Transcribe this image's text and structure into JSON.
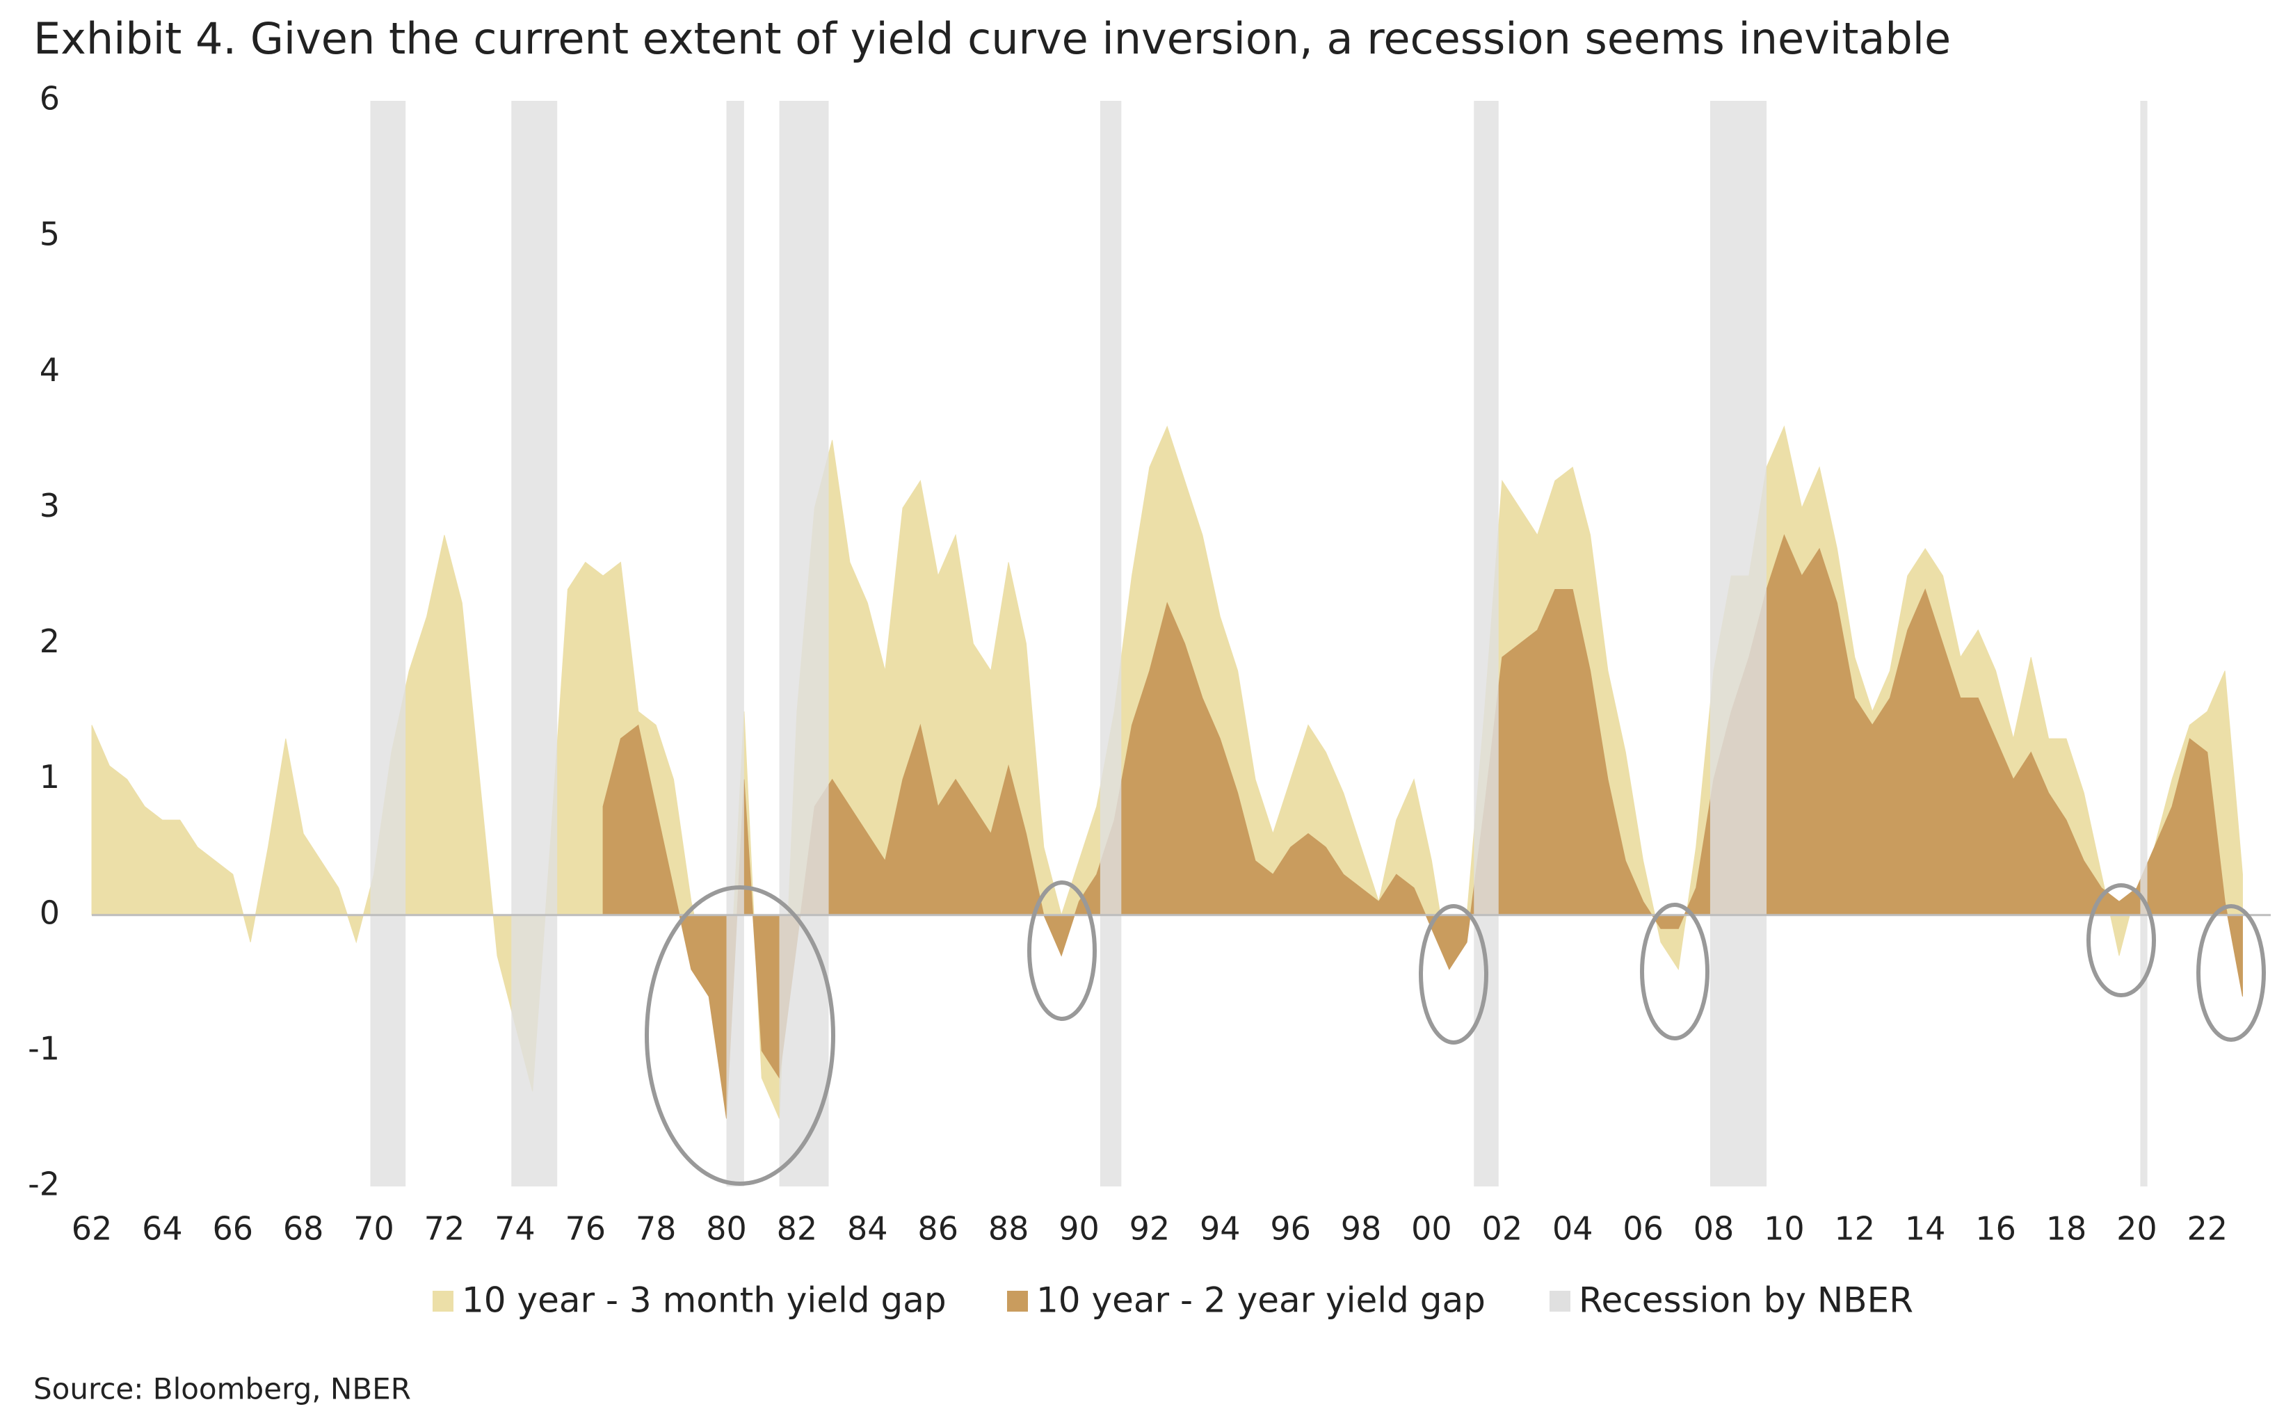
{
  "chart_data": {
    "type": "area",
    "title": "Exhibit 4. Given the current extent of yield curve inversion, a recession seems inevitable",
    "source": "Source: Bloomberg, NBER",
    "x": [
      1962,
      1962.5,
      1963,
      1963.5,
      1964,
      1964.5,
      1965,
      1965.5,
      1966,
      1966.5,
      1967,
      1967.5,
      1968,
      1968.5,
      1969,
      1969.5,
      1970,
      1970.5,
      1971,
      1971.5,
      1972,
      1972.5,
      1973,
      1973.5,
      1974,
      1974.5,
      1975,
      1975.5,
      1976,
      1976.5,
      1977,
      1977.5,
      1978,
      1978.5,
      1979,
      1979.5,
      1980,
      1980.5,
      1981,
      1981.5,
      1982,
      1982.5,
      1983,
      1983.5,
      1984,
      1984.5,
      1985,
      1985.5,
      1986,
      1986.5,
      1987,
      1987.5,
      1988,
      1988.5,
      1989,
      1989.5,
      1990,
      1990.5,
      1991,
      1991.5,
      1992,
      1992.5,
      1993,
      1993.5,
      1994,
      1994.5,
      1995,
      1995.5,
      1996,
      1996.5,
      1997,
      1997.5,
      1998,
      1998.5,
      1999,
      1999.5,
      2000,
      2000.5,
      2001,
      2001.5,
      2002,
      2002.5,
      2003,
      2003.5,
      2004,
      2004.5,
      2005,
      2005.5,
      2006,
      2006.5,
      2007,
      2007.5,
      2008,
      2008.5,
      2009,
      2009.5,
      2010,
      2010.5,
      2011,
      2011.5,
      2012,
      2012.5,
      2013,
      2013.5,
      2014,
      2014.5,
      2015,
      2015.5,
      2016,
      2016.5,
      2017,
      2017.5,
      2018,
      2018.5,
      2019,
      2019.5,
      2020,
      2020.5,
      2021,
      2021.5,
      2022,
      2022.5,
      2023
    ],
    "series": [
      {
        "name": "10 year - 3 month yield gap",
        "color": "#ecdfa8",
        "values": [
          1.4,
          1.1,
          1.0,
          0.8,
          0.7,
          0.7,
          0.5,
          0.4,
          0.3,
          -0.2,
          0.5,
          1.3,
          0.6,
          0.4,
          0.2,
          -0.2,
          0.3,
          1.2,
          1.8,
          2.2,
          2.8,
          2.3,
          1.0,
          -0.3,
          -0.8,
          -1.3,
          0.5,
          2.4,
          2.6,
          2.5,
          2.6,
          1.5,
          1.4,
          1.0,
          0.1,
          -0.5,
          -1.0,
          1.5,
          -1.2,
          -1.5,
          1.5,
          3.0,
          3.5,
          2.6,
          2.3,
          1.8,
          3.0,
          3.2,
          2.5,
          2.8,
          2.0,
          1.8,
          2.6,
          2.0,
          0.5,
          0.0,
          0.4,
          0.8,
          1.5,
          2.5,
          3.3,
          3.6,
          3.2,
          2.8,
          2.2,
          1.8,
          1.0,
          0.6,
          1.0,
          1.4,
          1.2,
          0.9,
          0.5,
          0.1,
          0.7,
          1.0,
          0.4,
          -0.4,
          0.0,
          1.5,
          3.2,
          3.0,
          2.8,
          3.2,
          3.3,
          2.8,
          1.8,
          1.2,
          0.4,
          -0.2,
          -0.4,
          0.5,
          1.8,
          2.5,
          2.5,
          3.3,
          3.6,
          3.0,
          3.3,
          2.7,
          1.9,
          1.5,
          1.8,
          2.5,
          2.7,
          2.5,
          1.9,
          2.1,
          1.8,
          1.3,
          1.9,
          1.3,
          1.3,
          0.9,
          0.3,
          -0.3,
          0.2,
          0.5,
          1.0,
          1.4,
          1.5,
          1.8,
          0.3
        ]
      },
      {
        "name": "10 year - 2 year yield gap",
        "color": "#c99c5e",
        "values": [
          null,
          null,
          null,
          null,
          null,
          null,
          null,
          null,
          null,
          null,
          null,
          null,
          null,
          null,
          null,
          null,
          null,
          null,
          null,
          null,
          null,
          null,
          null,
          null,
          null,
          null,
          null,
          null,
          null,
          0.8,
          1.3,
          1.4,
          0.8,
          0.2,
          -0.4,
          -0.6,
          -1.5,
          1.0,
          -1.0,
          -1.2,
          -0.2,
          0.8,
          1.0,
          0.8,
          0.6,
          0.4,
          1.0,
          1.4,
          0.8,
          1.0,
          0.8,
          0.6,
          1.1,
          0.6,
          0.0,
          -0.3,
          0.1,
          0.3,
          0.7,
          1.4,
          1.8,
          2.3,
          2.0,
          1.6,
          1.3,
          0.9,
          0.4,
          0.3,
          0.5,
          0.6,
          0.5,
          0.3,
          0.2,
          0.1,
          0.3,
          0.2,
          -0.1,
          -0.4,
          -0.2,
          0.8,
          1.9,
          2.0,
          2.1,
          2.4,
          2.4,
          1.8,
          1.0,
          0.4,
          0.1,
          -0.1,
          -0.1,
          0.2,
          1.0,
          1.5,
          1.9,
          2.4,
          2.8,
          2.5,
          2.7,
          2.3,
          1.6,
          1.4,
          1.6,
          2.1,
          2.4,
          2.0,
          1.6,
          1.6,
          1.3,
          1.0,
          1.2,
          0.9,
          0.7,
          0.4,
          0.2,
          0.1,
          0.2,
          0.5,
          0.8,
          1.3,
          1.2,
          0.1,
          -0.6
        ]
      }
    ],
    "recessions": {
      "name": "Recession by NBER",
      "color": "#e0e0e0",
      "periods": [
        [
          1969.9,
          1970.9
        ],
        [
          1973.9,
          1975.2
        ],
        [
          1980.0,
          1980.5
        ],
        [
          1981.5,
          1982.9
        ],
        [
          1990.6,
          1991.2
        ],
        [
          2001.2,
          2001.9
        ],
        [
          2007.9,
          2009.5
        ],
        [
          2020.1,
          2020.3
        ]
      ]
    },
    "xlim": [
      1962,
      2023.8
    ],
    "xticks": [
      {
        "value": 1962,
        "label": "62"
      },
      {
        "value": 1964,
        "label": "64"
      },
      {
        "value": 1966,
        "label": "66"
      },
      {
        "value": 1968,
        "label": "68"
      },
      {
        "value": 1970,
        "label": "70"
      },
      {
        "value": 1972,
        "label": "72"
      },
      {
        "value": 1974,
        "label": "74"
      },
      {
        "value": 1976,
        "label": "76"
      },
      {
        "value": 1978,
        "label": "78"
      },
      {
        "value": 1980,
        "label": "80"
      },
      {
        "value": 1982,
        "label": "82"
      },
      {
        "value": 1984,
        "label": "84"
      },
      {
        "value": 1986,
        "label": "86"
      },
      {
        "value": 1988,
        "label": "88"
      },
      {
        "value": 1990,
        "label": "90"
      },
      {
        "value": 1992,
        "label": "92"
      },
      {
        "value": 1994,
        "label": "94"
      },
      {
        "value": 1996,
        "label": "96"
      },
      {
        "value": 1998,
        "label": "98"
      },
      {
        "value": 2000,
        "label": "00"
      },
      {
        "value": 2002,
        "label": "02"
      },
      {
        "value": 2004,
        "label": "04"
      },
      {
        "value": 2006,
        "label": "06"
      },
      {
        "value": 2008,
        "label": "08"
      },
      {
        "value": 2010,
        "label": "10"
      },
      {
        "value": 2012,
        "label": "12"
      },
      {
        "value": 2014,
        "label": "14"
      },
      {
        "value": 2016,
        "label": "16"
      },
      {
        "value": 2018,
        "label": "18"
      },
      {
        "value": 2020,
        "label": "20"
      },
      {
        "value": 2022,
        "label": "22"
      }
    ],
    "ylim": [
      -2,
      6
    ],
    "yticks": [
      -2,
      -1,
      0,
      1,
      2,
      3,
      4,
      5,
      6
    ],
    "grid": false
  }
}
